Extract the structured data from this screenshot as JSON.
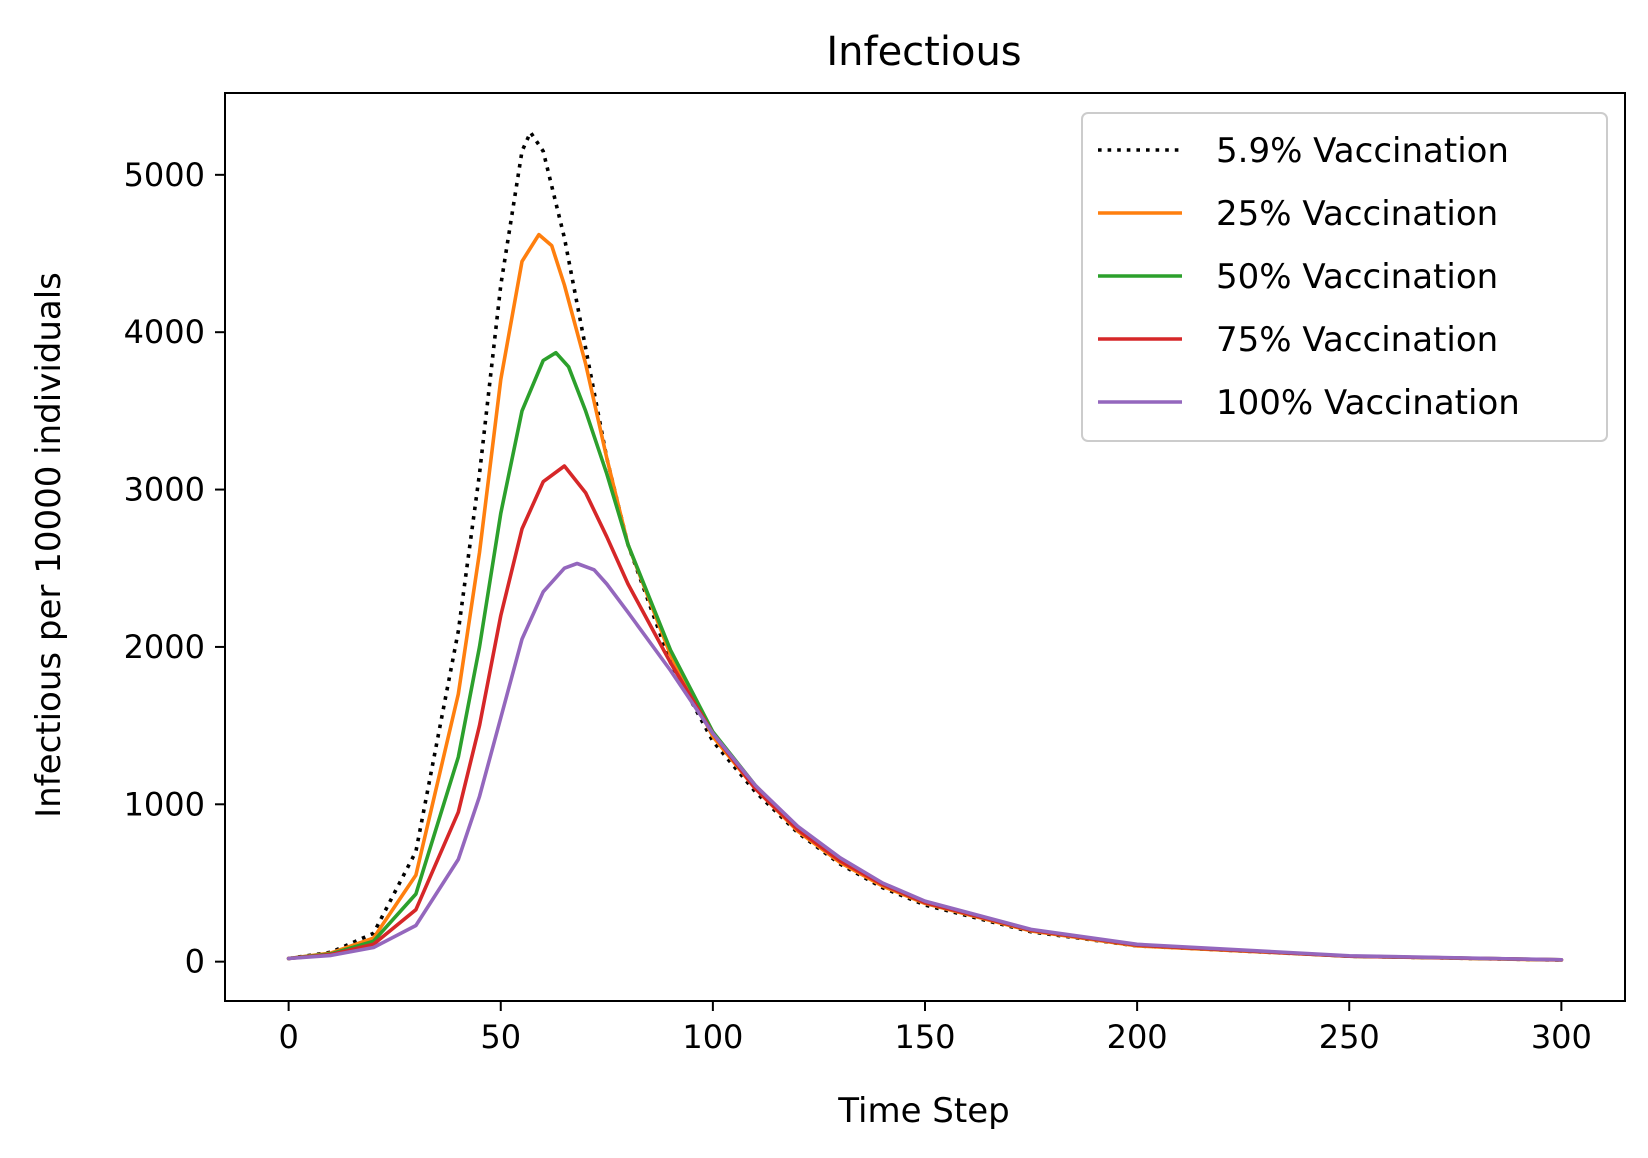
{
  "chart_data": {
    "type": "line",
    "title": "Infectious",
    "xlabel": "Time Step",
    "ylabel": "Infectious per 10000 individuals",
    "xlim": [
      -15,
      315
    ],
    "ylim": [
      -250,
      5520
    ],
    "xticks": [
      0,
      50,
      100,
      150,
      200,
      250,
      300
    ],
    "xtick_labels": [
      "0",
      "50",
      "100",
      "150",
      "200",
      "250",
      "300"
    ],
    "yticks": [
      0,
      1000,
      2000,
      3000,
      4000,
      5000
    ],
    "ytick_labels": [
      "0",
      "1000",
      "2000",
      "3000",
      "4000",
      "5000"
    ],
    "grid": false,
    "legend_position": "top-right",
    "series": [
      {
        "name": "5.9% Vaccination",
        "color": "#000000",
        "style": "dotted",
        "x": [
          0,
          10,
          20,
          30,
          40,
          45,
          50,
          55,
          57,
          60,
          65,
          70,
          75,
          80,
          90,
          100,
          110,
          120,
          130,
          140,
          150,
          175,
          200,
          250,
          300
        ],
        "y": [
          20,
          60,
          180,
          700,
          2100,
          3100,
          4300,
          5150,
          5270,
          5150,
          4600,
          3900,
          3200,
          2650,
          1900,
          1400,
          1080,
          820,
          620,
          470,
          360,
          190,
          100,
          35,
          10
        ]
      },
      {
        "name": "25% Vaccination",
        "color": "#ff7f0e",
        "style": "solid",
        "x": [
          0,
          10,
          20,
          30,
          40,
          45,
          50,
          55,
          59,
          62,
          65,
          70,
          75,
          80,
          90,
          100,
          110,
          120,
          130,
          140,
          150,
          175,
          200,
          250,
          300
        ],
        "y": [
          20,
          55,
          150,
          550,
          1700,
          2600,
          3700,
          4450,
          4620,
          4550,
          4300,
          3800,
          3200,
          2650,
          1950,
          1430,
          1100,
          830,
          630,
          480,
          370,
          195,
          100,
          35,
          10
        ]
      },
      {
        "name": "50% Vaccination",
        "color": "#2ca02c",
        "style": "solid",
        "x": [
          0,
          10,
          20,
          30,
          40,
          45,
          50,
          55,
          60,
          63,
          66,
          70,
          75,
          80,
          90,
          100,
          110,
          120,
          130,
          140,
          150,
          175,
          200,
          250,
          300
        ],
        "y": [
          20,
          50,
          130,
          430,
          1300,
          2000,
          2850,
          3500,
          3820,
          3870,
          3780,
          3500,
          3100,
          2650,
          1980,
          1460,
          1120,
          850,
          650,
          490,
          375,
          200,
          105,
          35,
          12
        ]
      },
      {
        "name": "75% Vaccination",
        "color": "#d62728",
        "style": "solid",
        "x": [
          0,
          10,
          20,
          30,
          40,
          45,
          50,
          55,
          60,
          65,
          70,
          75,
          80,
          90,
          100,
          110,
          120,
          130,
          140,
          150,
          175,
          200,
          250,
          300
        ],
        "y": [
          20,
          45,
          110,
          330,
          950,
          1500,
          2200,
          2750,
          3050,
          3150,
          2980,
          2700,
          2400,
          1900,
          1450,
          1100,
          840,
          640,
          490,
          375,
          200,
          105,
          35,
          12
        ]
      },
      {
        "name": "100% Vaccination",
        "color": "#9467bd",
        "style": "solid",
        "x": [
          0,
          10,
          20,
          30,
          40,
          45,
          50,
          55,
          60,
          65,
          68,
          72,
          75,
          80,
          90,
          100,
          110,
          120,
          130,
          140,
          150,
          175,
          200,
          250,
          300
        ],
        "y": [
          20,
          40,
          90,
          230,
          650,
          1050,
          1550,
          2050,
          2350,
          2500,
          2530,
          2490,
          2400,
          2220,
          1850,
          1450,
          1120,
          860,
          660,
          500,
          385,
          205,
          110,
          37,
          12
        ]
      }
    ]
  }
}
